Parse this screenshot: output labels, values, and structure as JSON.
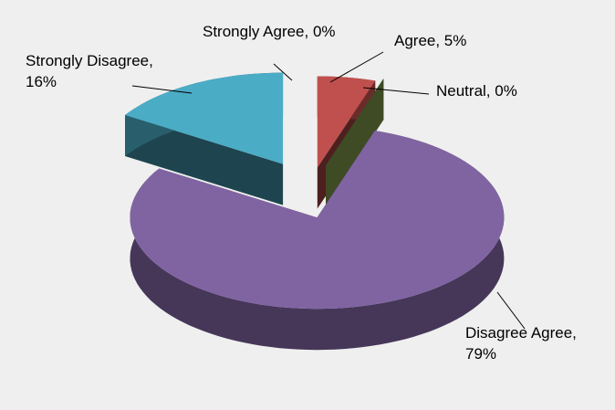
{
  "chart_data": {
    "type": "pie",
    "values": [
      0,
      5,
      0,
      79,
      16
    ],
    "value_labels": [
      "Strongly Agree, 0%",
      "Agree, 5%",
      "Neutral, 0%",
      "Disagree Agree, 79%",
      "Strongly Disagree, 16%"
    ],
    "colors": [
      "#4f81bd",
      "#c0504d",
      "#9bbb59",
      "#8064a2",
      "#4bacc6"
    ]
  }
}
